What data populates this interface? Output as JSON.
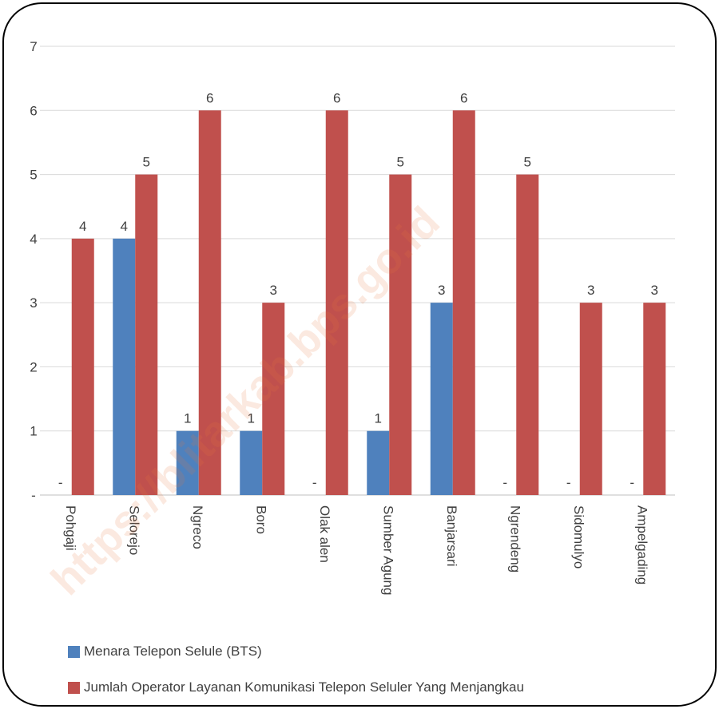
{
  "chart_data": {
    "type": "bar",
    "categories": [
      "Pohgaji",
      "Selorejo",
      "Ngreco",
      "Boro",
      "Olak alen",
      "Sumber Agung",
      "Banjarsari",
      "Ngrendeng",
      "Sidomulyo",
      "Ampelgading"
    ],
    "series": [
      {
        "name": "Menara Telepon Selule (BTS)",
        "values": [
          0,
          4,
          1,
          1,
          0,
          1,
          3,
          0,
          0,
          0
        ],
        "labels": [
          "-",
          "4",
          "1",
          "1",
          "-",
          "1",
          "3",
          "-",
          "-",
          "-"
        ],
        "color": "#4f81bd"
      },
      {
        "name": "Jumlah Operator Layanan Komunikasi Telepon Seluler Yang Menjangkau",
        "values": [
          4,
          5,
          6,
          3,
          6,
          5,
          6,
          5,
          3,
          3
        ],
        "labels": [
          "4",
          "5",
          "6",
          "3",
          "6",
          "5",
          "6",
          "5",
          "3",
          "3"
        ],
        "color": "#c0504d"
      }
    ],
    "yticks": [
      "-",
      "1",
      "2",
      "3",
      "4",
      "5",
      "6",
      "7"
    ],
    "ylim": [
      0,
      7
    ],
    "grid": true,
    "legend": "bottom",
    "watermark": "https://blitarkab.bps.go.id"
  }
}
